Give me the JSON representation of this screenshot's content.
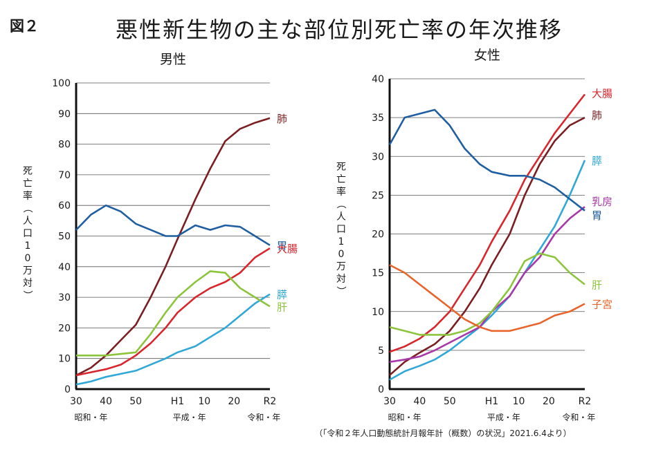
{
  "figure_label": "図２",
  "title": "悪性新生物の主な部位別死亡率の年次推移",
  "source": "（「令和２年人口動態統計月報年計（概数）の状況」2021.6.4より）",
  "colors": {
    "lung": "#7a1e22",
    "stomach": "#1f5ea0",
    "colorectal": "#d8262c",
    "pancreas": "#2fa8d8",
    "liver": "#8cc43c",
    "breast": "#a838a8",
    "uterus": "#e8642a"
  },
  "chart_data": [
    {
      "type": "line",
      "title": "男性",
      "ylabel": "死亡率（人口10万対）",
      "x_ticks": [
        "30",
        "40",
        "50",
        "H1",
        "10",
        "20",
        "R2"
      ],
      "x_era_labels": [
        "昭和・年",
        "平成・年",
        "令和・年"
      ],
      "ylim": [
        0,
        100
      ],
      "y_ticks": [
        0,
        10,
        20,
        30,
        40,
        50,
        60,
        70,
        80,
        90,
        100
      ],
      "grid": true,
      "x": [
        1955,
        1960,
        1965,
        1970,
        1975,
        1980,
        1985,
        1989,
        1995,
        2000,
        2005,
        2010,
        2015,
        2020
      ],
      "series": [
        {
          "name": "肺",
          "key": "lung",
          "values": [
            4.5,
            7,
            11,
            16,
            21,
            30,
            40,
            49,
            62,
            72,
            81,
            85,
            87,
            88.5
          ]
        },
        {
          "name": "胃",
          "key": "stomach",
          "values": [
            52,
            57,
            60,
            58,
            54,
            52,
            50,
            50,
            53.5,
            52,
            53.5,
            53,
            50,
            47
          ]
        },
        {
          "name": "大腸",
          "key": "colorectal",
          "values": [
            4.5,
            5.5,
            6.5,
            8,
            11,
            15,
            20,
            25,
            30,
            33,
            35,
            38,
            43,
            46
          ]
        },
        {
          "name": "膵",
          "key": "pancreas",
          "values": [
            1.5,
            2.5,
            4,
            5,
            6,
            8,
            10,
            12,
            14,
            17,
            20,
            24,
            28,
            31
          ]
        },
        {
          "name": "肝",
          "key": "liver",
          "values": [
            11,
            11,
            11,
            11.5,
            12,
            18,
            25,
            30,
            35,
            38.5,
            38,
            33,
            30,
            27
          ]
        }
      ]
    },
    {
      "type": "line",
      "title": "女性",
      "ylabel": "死亡率（人口10万対）",
      "x_ticks": [
        "30",
        "40",
        "50",
        "H1",
        "10",
        "20",
        "R2"
      ],
      "x_era_labels": [
        "昭和・年",
        "平成・年",
        "令和・年"
      ],
      "ylim": [
        0,
        40
      ],
      "y_ticks": [
        0,
        5,
        10,
        15,
        20,
        25,
        30,
        35,
        40
      ],
      "grid": true,
      "x": [
        1955,
        1960,
        1965,
        1970,
        1975,
        1980,
        1985,
        1989,
        1995,
        2000,
        2005,
        2010,
        2015,
        2020
      ],
      "series": [
        {
          "name": "大腸",
          "key": "colorectal",
          "values": [
            4.8,
            5.5,
            6.5,
            8,
            10,
            13,
            16,
            19,
            23,
            27,
            30,
            33,
            35.5,
            38
          ]
        },
        {
          "name": "肺",
          "key": "lung",
          "values": [
            1.8,
            3.5,
            4.7,
            5.8,
            7.5,
            10,
            13,
            16,
            20,
            25,
            29,
            32,
            34,
            35
          ]
        },
        {
          "name": "膵",
          "key": "pancreas",
          "values": [
            1.2,
            2.3,
            3,
            3.8,
            5,
            6.5,
            8,
            9.5,
            12,
            15,
            18,
            21,
            25,
            29.5
          ]
        },
        {
          "name": "乳房",
          "key": "breast",
          "values": [
            3.5,
            3.8,
            4.2,
            5,
            6,
            7,
            8,
            10,
            12,
            15,
            17,
            20,
            22,
            23.5
          ]
        },
        {
          "name": "胃",
          "key": "stomach",
          "values": [
            31.5,
            35,
            35.5,
            36,
            34,
            31,
            29,
            28,
            27.5,
            27.5,
            27,
            26,
            24.5,
            23
          ]
        },
        {
          "name": "肝",
          "key": "liver",
          "values": [
            8,
            7.5,
            7,
            7,
            7,
            7.5,
            8.5,
            10,
            13,
            16.5,
            17.5,
            17,
            15,
            13.5
          ]
        },
        {
          "name": "子宮",
          "key": "uterus",
          "values": [
            16,
            15,
            13.5,
            12,
            10.5,
            9,
            8,
            7.5,
            7.5,
            8,
            8.5,
            9.5,
            10,
            11
          ]
        }
      ]
    }
  ]
}
